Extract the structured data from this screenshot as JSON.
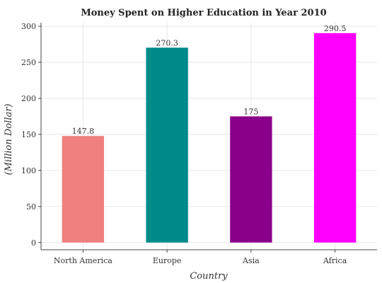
{
  "chart_data": {
    "type": "bar",
    "title": "Money Spent on Higher Education in Year 2010",
    "xlabel": "Country",
    "ylabel": "(Million Dollar)",
    "categories": [
      "North America",
      "Europe",
      "Asia",
      "Africa"
    ],
    "values": [
      147.8,
      270.3,
      175,
      290.5
    ],
    "data_labels": [
      "147.8",
      "270.3",
      "175",
      "290.5"
    ],
    "colors": [
      "#f08080",
      "#008b8b",
      "#8b008b",
      "#ff00ff"
    ],
    "ylim": [
      -10,
      305
    ],
    "yticks": [
      0,
      50,
      100,
      150,
      200,
      250,
      300
    ],
    "grid": true,
    "legend": "none"
  }
}
